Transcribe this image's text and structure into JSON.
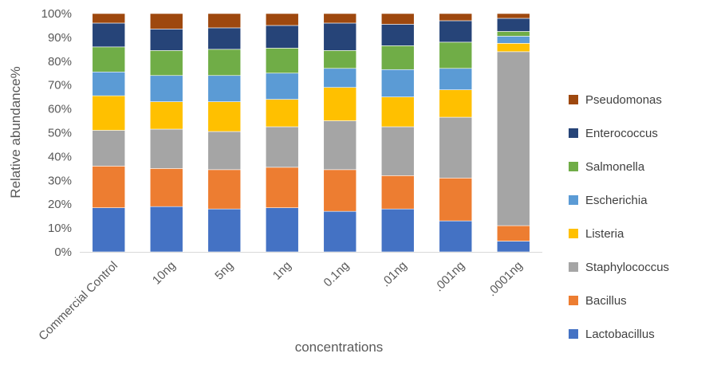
{
  "chart_data": {
    "type": "bar",
    "stacked": true,
    "percent": true,
    "title": "",
    "xlabel": "concentrations",
    "ylabel": "Relative abundance%",
    "ylim": [
      0,
      100
    ],
    "yticks": [
      "0%",
      "10%",
      "20%",
      "30%",
      "40%",
      "50%",
      "60%",
      "70%",
      "80%",
      "90%",
      "100%"
    ],
    "grid": false,
    "legend_position": "right",
    "categories": [
      "Commercial Control",
      "10ng",
      "5ng",
      "1ng",
      "0.1ng",
      ".01ng",
      ".001ng",
      ".0001ng"
    ],
    "series": [
      {
        "name": "Lactobacillus",
        "color": "#4472C4",
        "values": [
          18.5,
          19,
          18,
          18.5,
          17,
          18,
          13,
          4.5
        ]
      },
      {
        "name": "Bacillus",
        "color": "#ED7D31",
        "values": [
          17.5,
          16,
          16.5,
          17,
          17.5,
          14,
          18,
          6.5
        ]
      },
      {
        "name": "Staphylococcus",
        "color": "#A5A5A5",
        "values": [
          15,
          16.5,
          16,
          17,
          20.5,
          20.5,
          25.5,
          73
        ]
      },
      {
        "name": "Listeria",
        "color": "#FFC000",
        "values": [
          14.5,
          11.5,
          12.5,
          11.5,
          14,
          12.5,
          11.5,
          3.5
        ]
      },
      {
        "name": "Escherichia",
        "color": "#5B9BD5",
        "values": [
          10,
          11,
          11,
          11,
          8,
          11.5,
          9,
          3
        ]
      },
      {
        "name": "Salmonella",
        "color": "#70AD47",
        "values": [
          10.5,
          10.5,
          11,
          10.5,
          7.5,
          10,
          11,
          2
        ]
      },
      {
        "name": "Enterococcus",
        "color": "#264478",
        "values": [
          10,
          9,
          9,
          9.5,
          11.5,
          9,
          9,
          5.5
        ]
      },
      {
        "name": "Pseudomonas",
        "color": "#9E480E",
        "values": [
          4,
          6.5,
          6,
          5,
          4,
          4.5,
          3,
          2
        ]
      }
    ]
  }
}
